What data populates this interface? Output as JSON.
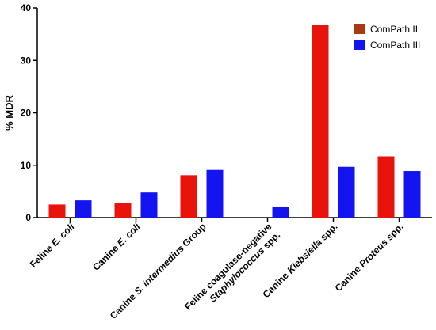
{
  "chart_data": {
    "type": "bar",
    "title": "",
    "ylabel": "% MDR",
    "xlabel": "",
    "ylim": [
      0,
      40
    ],
    "yticks": [
      0,
      10,
      20,
      30,
      40
    ],
    "grid": false,
    "legend_position": "top-right",
    "categories": [
      {
        "parts": [
          {
            "t": "Feline ",
            "i": false
          },
          {
            "t": "E. coli",
            "i": true
          }
        ]
      },
      {
        "parts": [
          {
            "t": "Canine ",
            "i": false
          },
          {
            "t": "E. coli",
            "i": true
          }
        ]
      },
      {
        "parts": [
          {
            "t": "Canine ",
            "i": false
          },
          {
            "t": "S. intermedius",
            "i": true
          },
          {
            "t": " Group",
            "i": false
          }
        ]
      },
      {
        "parts": [
          {
            "t": "Feline coagulase-negative",
            "i": false
          }
        ],
        "parts2": [
          {
            "t": "Staphylococcus",
            "i": true
          },
          {
            "t": " spp.",
            "i": false
          }
        ]
      },
      {
        "parts": [
          {
            "t": "Canine ",
            "i": false
          },
          {
            "t": "Klebsiella",
            "i": true
          },
          {
            "t": " spp.",
            "i": false
          }
        ]
      },
      {
        "parts": [
          {
            "t": "Canine ",
            "i": false
          },
          {
            "t": "Proteus",
            "i": true
          },
          {
            "t": " spp.",
            "i": false
          }
        ]
      }
    ],
    "series": [
      {
        "name": "ComPath II",
        "color": "#e8140c",
        "legend_color": "#a83a12",
        "values": [
          2.5,
          2.8,
          8.1,
          0,
          36.7,
          11.7
        ]
      },
      {
        "name": "ComPath III",
        "color": "#1414f0",
        "legend_color": "#1414f0",
        "values": [
          3.3,
          4.8,
          9.1,
          2.0,
          9.7,
          8.9
        ]
      }
    ]
  }
}
